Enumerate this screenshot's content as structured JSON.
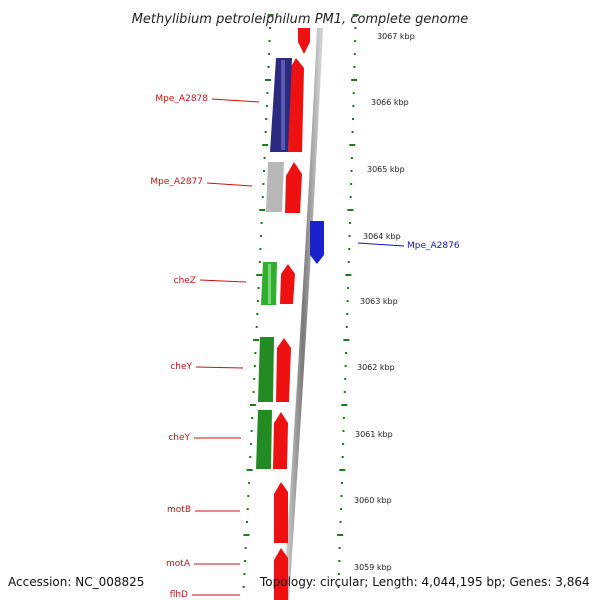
{
  "title": "Methylibium petroleiphilum PM1, complete genome",
  "accession_text": "Accession: NC_008825",
  "topology_text": "Topology: circular; Length: 4,044,195 bp; Genes: 3,864",
  "colors": {
    "forward_gene": "#ee1111",
    "reverse_gene_blue": "#1a22cc",
    "navy_block": "#2a2a80",
    "grey_block": "#b8b8b8",
    "green_block": "#2a9a2a",
    "backbone": "#888888",
    "tick": "#1f7a1f",
    "label_red": "#cc1111",
    "label_blue": "#1111cc"
  },
  "kbp_ticks": [
    {
      "label": "3067 kbp"
    },
    {
      "label": "3066 kbp"
    },
    {
      "label": "3065 kbp"
    },
    {
      "label": "3064 kbp"
    },
    {
      "label": "3063 kbp"
    },
    {
      "label": "3062 kbp"
    },
    {
      "label": "3061 kbp"
    },
    {
      "label": "3060 kbp"
    },
    {
      "label": "3059 kbp"
    }
  ],
  "gene_labels": [
    {
      "name": "Mpe_A2878",
      "color": "red"
    },
    {
      "name": "Mpe_A2877",
      "color": "red"
    },
    {
      "name": "Mpe_A2876",
      "color": "blue"
    },
    {
      "name": "cheZ",
      "color": "red"
    },
    {
      "name": "cheY",
      "color": "red"
    },
    {
      "name": "cheY",
      "color": "red"
    },
    {
      "name": "motB",
      "color": "red"
    },
    {
      "name": "motA",
      "color": "red"
    },
    {
      "name": "flhD",
      "color": "red"
    }
  ]
}
